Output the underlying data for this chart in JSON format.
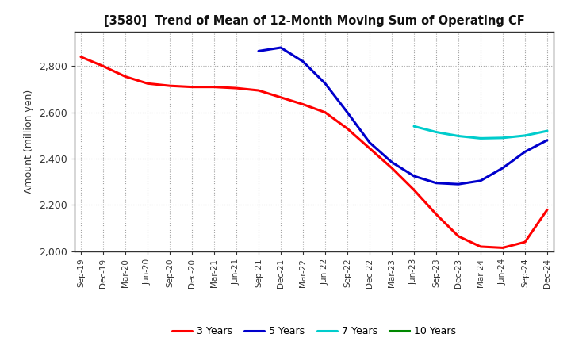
{
  "title": "[3580]  Trend of Mean of 12-Month Moving Sum of Operating CF",
  "ylabel": "Amount (million yen)",
  "ylim": [
    2000,
    2950
  ],
  "yticks": [
    2000,
    2200,
    2400,
    2600,
    2800
  ],
  "background_color": "#ffffff",
  "grid_color": "#999999",
  "series": {
    "3 Years": {
      "color": "#ff0000",
      "x": [
        "Sep-19",
        "Dec-19",
        "Mar-20",
        "Jun-20",
        "Sep-20",
        "Dec-20",
        "Mar-21",
        "Jun-21",
        "Sep-21",
        "Dec-21",
        "Mar-22",
        "Jun-22",
        "Sep-22",
        "Dec-22",
        "Mar-23",
        "Jun-23",
        "Sep-23",
        "Dec-23",
        "Mar-24",
        "Jun-24",
        "Sep-24",
        "Dec-24"
      ],
      "y": [
        2840,
        2800,
        2755,
        2725,
        2715,
        2710,
        2710,
        2705,
        2695,
        2665,
        2635,
        2600,
        2530,
        2445,
        2360,
        2265,
        2160,
        2065,
        2020,
        2015,
        2040,
        2180
      ]
    },
    "5 Years": {
      "color": "#0000cc",
      "x": [
        "Sep-21",
        "Dec-21",
        "Mar-22",
        "Jun-22",
        "Sep-22",
        "Dec-22",
        "Mar-23",
        "Jun-23",
        "Sep-23",
        "Dec-23",
        "Mar-24",
        "Jun-24",
        "Sep-24",
        "Dec-24"
      ],
      "y": [
        2865,
        2880,
        2820,
        2725,
        2600,
        2470,
        2385,
        2325,
        2295,
        2290,
        2305,
        2360,
        2430,
        2480
      ]
    },
    "7 Years": {
      "color": "#00cccc",
      "x": [
        "Jun-23",
        "Sep-23",
        "Dec-23",
        "Mar-24",
        "Jun-24",
        "Sep-24",
        "Dec-24"
      ],
      "y": [
        2540,
        2515,
        2498,
        2488,
        2490,
        2500,
        2520
      ]
    },
    "10 Years": {
      "color": "#008800",
      "x": [],
      "y": []
    }
  },
  "x_labels": [
    "Sep-19",
    "Dec-19",
    "Mar-20",
    "Jun-20",
    "Sep-20",
    "Dec-20",
    "Mar-21",
    "Jun-21",
    "Sep-21",
    "Dec-21",
    "Mar-22",
    "Jun-22",
    "Sep-22",
    "Dec-22",
    "Mar-23",
    "Jun-23",
    "Sep-23",
    "Dec-23",
    "Mar-24",
    "Jun-24",
    "Sep-24",
    "Dec-24"
  ],
  "legend_order": [
    "3 Years",
    "5 Years",
    "7 Years",
    "10 Years"
  ],
  "linewidth": 2.2
}
